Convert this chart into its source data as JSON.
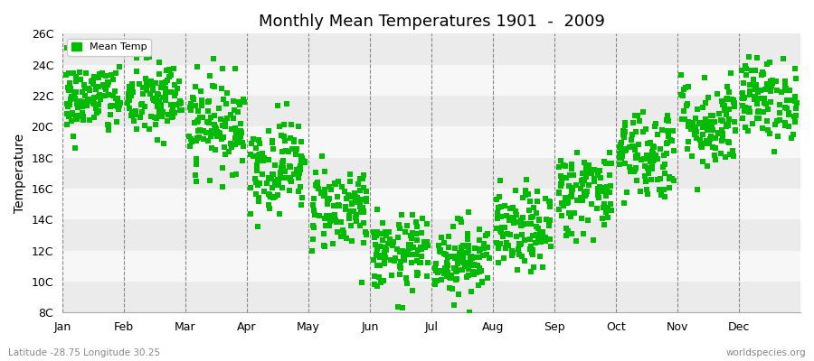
{
  "title": "Monthly Mean Temperatures 1901  -  2009",
  "ylabel": "Temperature",
  "footer_left": "Latitude -28.75 Longitude 30.25",
  "footer_right": "worldspecies.org",
  "legend_label": "Mean Temp",
  "dot_color": "#00BB00",
  "bg_color": "#FFFFFF",
  "band_colors": [
    "#EBEBEB",
    "#F7F7F7"
  ],
  "grid_color": "#888888",
  "months": [
    "Jan",
    "Feb",
    "Mar",
    "Apr",
    "May",
    "Jun",
    "Jul",
    "Aug",
    "Sep",
    "Oct",
    "Nov",
    "Dec"
  ],
  "mean_temps": [
    21.8,
    21.7,
    20.2,
    17.5,
    14.8,
    11.8,
    11.5,
    13.2,
    15.8,
    18.3,
    20.2,
    21.8
  ],
  "temp_std": [
    1.2,
    1.3,
    1.5,
    1.5,
    1.4,
    1.2,
    1.2,
    1.3,
    1.4,
    1.5,
    1.5,
    1.3
  ],
  "n_years": 109,
  "ylim": [
    8,
    26
  ],
  "yticks": [
    8,
    10,
    12,
    14,
    16,
    18,
    20,
    22,
    24,
    26
  ],
  "ytick_labels": [
    "8C",
    "10C",
    "12C",
    "14C",
    "16C",
    "18C",
    "20C",
    "22C",
    "24C",
    "26C"
  ],
  "marker_size": 18,
  "title_fontsize": 13,
  "axis_fontsize": 9,
  "ylabel_fontsize": 10
}
